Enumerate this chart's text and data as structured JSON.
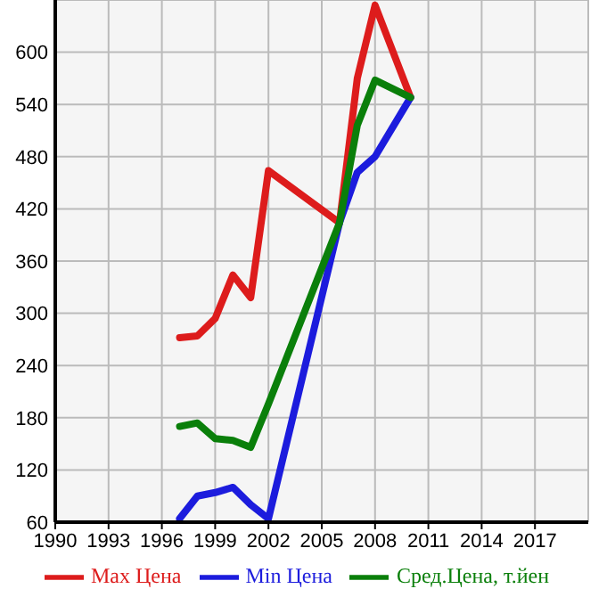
{
  "chart_data": {
    "type": "line",
    "x": [
      1997,
      1998,
      1999,
      2000,
      2001,
      2002,
      2006,
      2007,
      2008,
      2010
    ],
    "series": [
      {
        "name": "Max Цена",
        "color": "#dd1c1c",
        "values": [
          272,
          274,
          294,
          344,
          318,
          464,
          404,
          570,
          654,
          548
        ]
      },
      {
        "name": "Min Цена",
        "color": "#1c1cdd",
        "values": [
          64,
          90,
          94,
          100,
          80,
          64,
          404,
          462,
          480,
          548
        ]
      },
      {
        "name": "Сред.Цена, т.йен",
        "color": "#0a7f0a",
        "values": [
          170,
          174,
          156,
          154,
          146,
          196,
          404,
          516,
          568,
          548
        ]
      }
    ],
    "xlim": [
      1990,
      2020
    ],
    "xticks": [
      1990,
      1993,
      1996,
      1999,
      2002,
      2005,
      2008,
      2011,
      2014,
      2017
    ],
    "ylim": [
      60,
      660
    ],
    "yticks": [
      60,
      120,
      180,
      240,
      300,
      360,
      420,
      480,
      540,
      600
    ],
    "grid": true,
    "legend": "bottom",
    "marker": "none",
    "line_style": "solid"
  }
}
